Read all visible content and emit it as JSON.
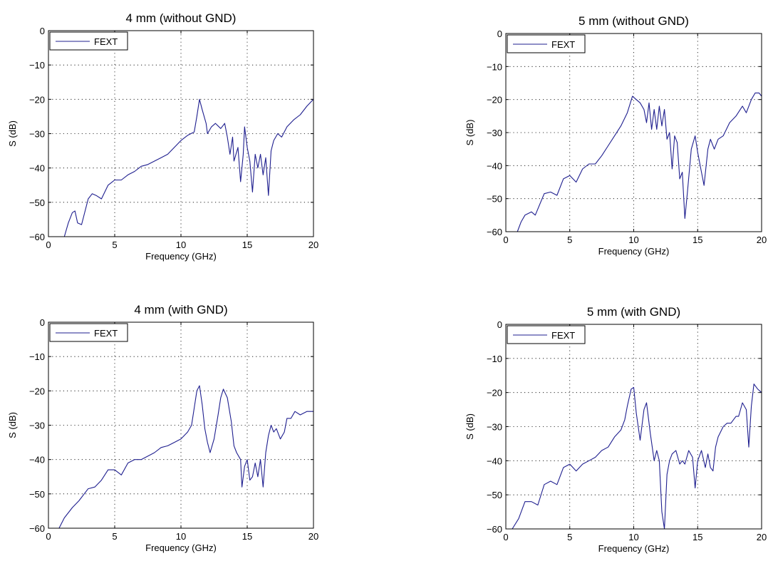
{
  "colors": {
    "series": "#1f1f8f",
    "axis": "#000000"
  },
  "chart_data": [
    {
      "type": "line",
      "title": "4 mm (without GND)",
      "xlabel": "Frequency (GHz)",
      "ylabel": "S (dB)",
      "xlim": [
        0,
        20
      ],
      "ylim": [
        -60,
        0
      ],
      "xticks": [
        "0",
        "5",
        "10",
        "15",
        "20"
      ],
      "yticks": [
        "0",
        "−10",
        "−20",
        "−30",
        "−40",
        "−50",
        "−60"
      ],
      "grid": true,
      "legend": "top-left",
      "series": [
        {
          "name": "FEXT",
          "points": [
            [
              1.2,
              -60
            ],
            [
              1.5,
              -56
            ],
            [
              1.8,
              -53
            ],
            [
              2.0,
              -52.5
            ],
            [
              2.2,
              -56
            ],
            [
              2.5,
              -56.5
            ],
            [
              3.0,
              -49
            ],
            [
              3.3,
              -47.5
            ],
            [
              3.6,
              -48
            ],
            [
              4.0,
              -49
            ],
            [
              4.5,
              -45
            ],
            [
              5.0,
              -43.5
            ],
            [
              5.5,
              -43.5
            ],
            [
              6.0,
              -42
            ],
            [
              6.5,
              -41
            ],
            [
              7.0,
              -39.5
            ],
            [
              7.5,
              -39
            ],
            [
              8.0,
              -38
            ],
            [
              8.5,
              -37
            ],
            [
              9.0,
              -36
            ],
            [
              9.5,
              -34
            ],
            [
              10.0,
              -32
            ],
            [
              10.5,
              -30.5
            ],
            [
              11.0,
              -29.5
            ],
            [
              11.2,
              -25
            ],
            [
              11.4,
              -20
            ],
            [
              11.6,
              -23
            ],
            [
              11.9,
              -27
            ],
            [
              12.0,
              -30
            ],
            [
              12.3,
              -28
            ],
            [
              12.6,
              -27
            ],
            [
              13.0,
              -28.5
            ],
            [
              13.3,
              -27
            ],
            [
              13.5,
              -31
            ],
            [
              13.7,
              -36
            ],
            [
              13.9,
              -31
            ],
            [
              14.0,
              -38
            ],
            [
              14.3,
              -34
            ],
            [
              14.5,
              -44
            ],
            [
              14.7,
              -36
            ],
            [
              14.8,
              -28
            ],
            [
              15.0,
              -34
            ],
            [
              15.2,
              -38
            ],
            [
              15.4,
              -47
            ],
            [
              15.6,
              -36
            ],
            [
              15.8,
              -40
            ],
            [
              16.0,
              -36
            ],
            [
              16.2,
              -42
            ],
            [
              16.4,
              -37
            ],
            [
              16.6,
              -48
            ],
            [
              16.8,
              -35
            ],
            [
              17.0,
              -32
            ],
            [
              17.3,
              -30
            ],
            [
              17.6,
              -31
            ],
            [
              18.0,
              -28
            ],
            [
              18.5,
              -26
            ],
            [
              19.0,
              -24.5
            ],
            [
              19.5,
              -22
            ],
            [
              20.0,
              -20
            ]
          ]
        }
      ]
    },
    {
      "type": "line",
      "title": "5 mm (without GND)",
      "xlabel": "Frequency (GHz)",
      "ylabel": "S (dB)",
      "xlim": [
        0,
        20
      ],
      "ylim": [
        -60,
        0
      ],
      "xticks": [
        "0",
        "5",
        "10",
        "15",
        "20"
      ],
      "yticks": [
        "0",
        "−10",
        "−20",
        "−30",
        "−40",
        "−50",
        "−60"
      ],
      "grid": true,
      "legend": "top-left",
      "series": [
        {
          "name": "FEXT",
          "points": [
            [
              0.9,
              -60
            ],
            [
              1.2,
              -57
            ],
            [
              1.5,
              -55
            ],
            [
              2.0,
              -54
            ],
            [
              2.3,
              -55
            ],
            [
              3.0,
              -48.5
            ],
            [
              3.5,
              -48
            ],
            [
              4.0,
              -49
            ],
            [
              4.5,
              -44
            ],
            [
              5.0,
              -43
            ],
            [
              5.5,
              -45
            ],
            [
              6.0,
              -41
            ],
            [
              6.5,
              -39.5
            ],
            [
              7.0,
              -39.5
            ],
            [
              7.5,
              -37
            ],
            [
              8.0,
              -34
            ],
            [
              8.5,
              -31
            ],
            [
              9.0,
              -28
            ],
            [
              9.5,
              -24
            ],
            [
              9.9,
              -19
            ],
            [
              10.2,
              -20
            ],
            [
              10.5,
              -21
            ],
            [
              10.8,
              -23
            ],
            [
              11.0,
              -27
            ],
            [
              11.2,
              -21
            ],
            [
              11.4,
              -29
            ],
            [
              11.6,
              -23
            ],
            [
              11.8,
              -29
            ],
            [
              12.0,
              -22
            ],
            [
              12.2,
              -28
            ],
            [
              12.4,
              -23
            ],
            [
              12.6,
              -32
            ],
            [
              12.8,
              -30
            ],
            [
              13.0,
              -41
            ],
            [
              13.2,
              -31
            ],
            [
              13.4,
              -33
            ],
            [
              13.6,
              -44
            ],
            [
              13.8,
              -42
            ],
            [
              14.0,
              -56
            ],
            [
              14.2,
              -48
            ],
            [
              14.5,
              -35
            ],
            [
              14.8,
              -31
            ],
            [
              15.0,
              -36
            ],
            [
              15.2,
              -40
            ],
            [
              15.5,
              -46
            ],
            [
              15.8,
              -35
            ],
            [
              16.0,
              -32
            ],
            [
              16.3,
              -35
            ],
            [
              16.6,
              -32
            ],
            [
              17.0,
              -31
            ],
            [
              17.5,
              -27
            ],
            [
              18.0,
              -25
            ],
            [
              18.5,
              -22
            ],
            [
              18.8,
              -24
            ],
            [
              19.2,
              -20
            ],
            [
              19.5,
              -18
            ],
            [
              19.8,
              -18
            ],
            [
              20.0,
              -19
            ]
          ]
        }
      ]
    },
    {
      "type": "line",
      "title": "4 mm (with GND)",
      "xlabel": "Frequency (GHz)",
      "ylabel": "S (dB)",
      "xlim": [
        0,
        20
      ],
      "ylim": [
        -60,
        0
      ],
      "xticks": [
        "0",
        "5",
        "10",
        "15",
        "20"
      ],
      "yticks": [
        "0",
        "−10",
        "−20",
        "−30",
        "−40",
        "−50",
        "−60"
      ],
      "grid": true,
      "legend": "top-left",
      "series": [
        {
          "name": "FEXT",
          "points": [
            [
              0.8,
              -60
            ],
            [
              1.2,
              -57
            ],
            [
              1.8,
              -54
            ],
            [
              2.3,
              -52
            ],
            [
              3.0,
              -48.5
            ],
            [
              3.5,
              -48
            ],
            [
              4.0,
              -46
            ],
            [
              4.5,
              -43
            ],
            [
              5.0,
              -43
            ],
            [
              5.5,
              -44.5
            ],
            [
              6.0,
              -41
            ],
            [
              6.5,
              -40
            ],
            [
              7.0,
              -40
            ],
            [
              7.5,
              -39
            ],
            [
              8.0,
              -38
            ],
            [
              8.5,
              -36.5
            ],
            [
              9.0,
              -36
            ],
            [
              9.5,
              -35
            ],
            [
              10.0,
              -34
            ],
            [
              10.5,
              -32
            ],
            [
              10.8,
              -30
            ],
            [
              11.0,
              -25
            ],
            [
              11.2,
              -20
            ],
            [
              11.4,
              -18.5
            ],
            [
              11.6,
              -24
            ],
            [
              11.8,
              -31
            ],
            [
              12.0,
              -35
            ],
            [
              12.2,
              -38
            ],
            [
              12.5,
              -34
            ],
            [
              12.8,
              -27
            ],
            [
              13.0,
              -22
            ],
            [
              13.2,
              -19.5
            ],
            [
              13.5,
              -22
            ],
            [
              13.8,
              -29
            ],
            [
              14.0,
              -36
            ],
            [
              14.2,
              -38
            ],
            [
              14.5,
              -40
            ],
            [
              14.6,
              -48
            ],
            [
              14.8,
              -42
            ],
            [
              15.0,
              -40
            ],
            [
              15.2,
              -46
            ],
            [
              15.4,
              -45
            ],
            [
              15.6,
              -41
            ],
            [
              15.8,
              -45
            ],
            [
              16.0,
              -40
            ],
            [
              16.2,
              -48
            ],
            [
              16.4,
              -38
            ],
            [
              16.6,
              -33
            ],
            [
              16.8,
              -30
            ],
            [
              17.0,
              -32
            ],
            [
              17.2,
              -31
            ],
            [
              17.5,
              -34
            ],
            [
              17.8,
              -32
            ],
            [
              18.0,
              -28
            ],
            [
              18.3,
              -28
            ],
            [
              18.6,
              -26
            ],
            [
              19.0,
              -27
            ],
            [
              19.5,
              -26
            ],
            [
              20.0,
              -26
            ]
          ]
        }
      ]
    },
    {
      "type": "line",
      "title": "5 mm (with GND)",
      "xlabel": "Frequency (GHz)",
      "ylabel": "S (dB)",
      "xlim": [
        0,
        20
      ],
      "ylim": [
        -60,
        0
      ],
      "xticks": [
        "0",
        "5",
        "10",
        "15",
        "20"
      ],
      "yticks": [
        "0",
        "−10",
        "−20",
        "−30",
        "−40",
        "−50",
        "−60"
      ],
      "grid": true,
      "legend": "top-left",
      "series": [
        {
          "name": "FEXT",
          "points": [
            [
              0.5,
              -60
            ],
            [
              1.0,
              -57
            ],
            [
              1.5,
              -52
            ],
            [
              2.0,
              -52
            ],
            [
              2.5,
              -53
            ],
            [
              3.0,
              -47
            ],
            [
              3.5,
              -46
            ],
            [
              4.0,
              -47
            ],
            [
              4.5,
              -42
            ],
            [
              5.0,
              -41
            ],
            [
              5.5,
              -43
            ],
            [
              6.0,
              -41
            ],
            [
              6.5,
              -40
            ],
            [
              7.0,
              -39
            ],
            [
              7.5,
              -37
            ],
            [
              8.0,
              -36
            ],
            [
              8.5,
              -33
            ],
            [
              9.0,
              -31
            ],
            [
              9.3,
              -28
            ],
            [
              9.5,
              -24
            ],
            [
              9.8,
              -19
            ],
            [
              10.0,
              -18.5
            ],
            [
              10.2,
              -26
            ],
            [
              10.5,
              -34
            ],
            [
              10.8,
              -25
            ],
            [
              11.0,
              -23
            ],
            [
              11.3,
              -32
            ],
            [
              11.6,
              -40
            ],
            [
              11.8,
              -37
            ],
            [
              12.0,
              -40
            ],
            [
              12.2,
              -55
            ],
            [
              12.4,
              -60
            ],
            [
              12.6,
              -44
            ],
            [
              12.8,
              -40
            ],
            [
              13.0,
              -38
            ],
            [
              13.3,
              -37
            ],
            [
              13.6,
              -41
            ],
            [
              13.8,
              -40
            ],
            [
              14.0,
              -41
            ],
            [
              14.3,
              -37
            ],
            [
              14.6,
              -39
            ],
            [
              14.8,
              -48
            ],
            [
              15.0,
              -40
            ],
            [
              15.3,
              -37
            ],
            [
              15.6,
              -42
            ],
            [
              15.8,
              -38
            ],
            [
              16.0,
              -42
            ],
            [
              16.2,
              -43
            ],
            [
              16.4,
              -36
            ],
            [
              16.6,
              -33
            ],
            [
              17.0,
              -30
            ],
            [
              17.3,
              -29
            ],
            [
              17.6,
              -29
            ],
            [
              18.0,
              -27
            ],
            [
              18.2,
              -27
            ],
            [
              18.5,
              -23
            ],
            [
              18.8,
              -25
            ],
            [
              19.0,
              -36
            ],
            [
              19.2,
              -24
            ],
            [
              19.4,
              -17.5
            ],
            [
              19.7,
              -19
            ],
            [
              20.0,
              -20
            ]
          ]
        }
      ]
    }
  ]
}
